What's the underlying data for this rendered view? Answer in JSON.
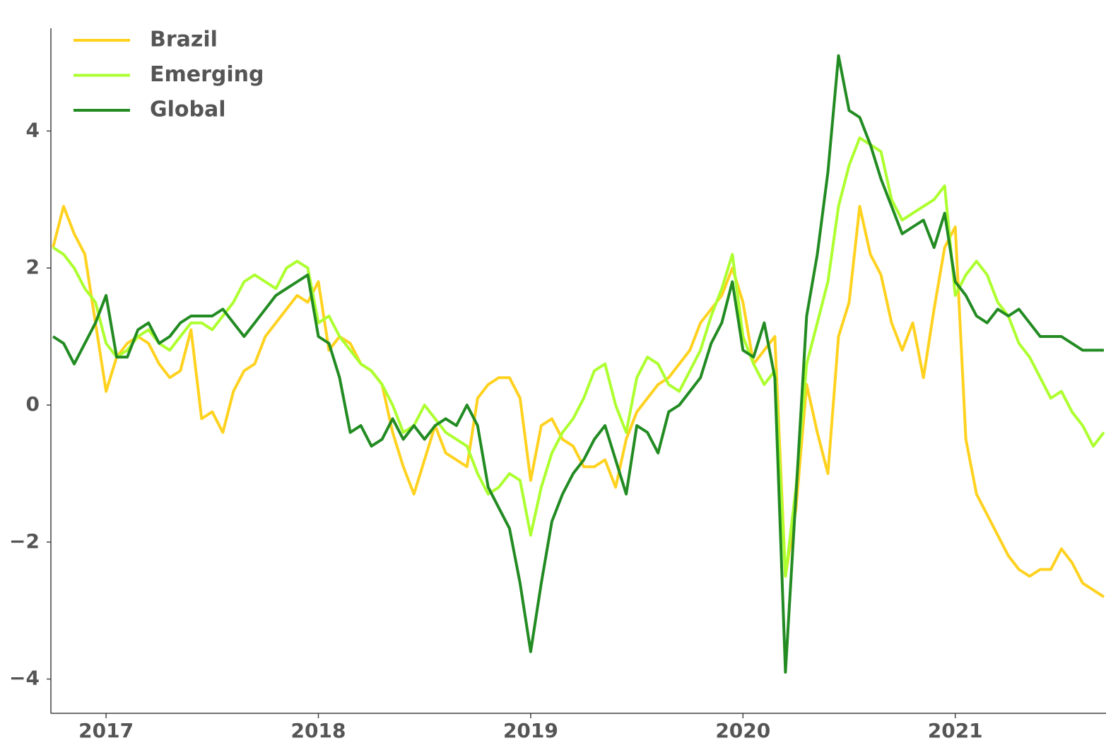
{
  "chart_data": {
    "type": "line",
    "x": [
      2016.75,
      2016.8,
      2016.85,
      2016.9,
      2016.95,
      2017,
      2017.05,
      2017.1,
      2017.15,
      2017.2,
      2017.25,
      2017.3,
      2017.35,
      2017.4,
      2017.45,
      2017.5,
      2017.55,
      2017.6,
      2017.65,
      2017.7,
      2017.75,
      2017.8,
      2017.85,
      2017.9,
      2017.95,
      2018,
      2018.05,
      2018.1,
      2018.15,
      2018.2,
      2018.25,
      2018.3,
      2018.35,
      2018.4,
      2018.45,
      2018.5,
      2018.55,
      2018.6,
      2018.65,
      2018.7,
      2018.75,
      2018.8,
      2018.85,
      2018.9,
      2018.95,
      2019,
      2019.05,
      2019.1,
      2019.15,
      2019.2,
      2019.25,
      2019.3,
      2019.35,
      2019.4,
      2019.45,
      2019.5,
      2019.55,
      2019.6,
      2019.65,
      2019.7,
      2019.75,
      2019.8,
      2019.85,
      2019.9,
      2019.95,
      2020,
      2020.05,
      2020.1,
      2020.15,
      2020.2,
      2020.25,
      2020.3,
      2020.35,
      2020.4,
      2020.45,
      2020.5,
      2020.55,
      2020.6,
      2020.65,
      2020.7,
      2020.75,
      2020.8,
      2020.85,
      2020.9,
      2020.95,
      2021,
      2021.05,
      2021.1,
      2021.15,
      2021.2,
      2021.25,
      2021.3,
      2021.35,
      2021.4,
      2021.45,
      2021.5,
      2021.55,
      2021.6,
      2021.65,
      2021.7
    ],
    "series": [
      {
        "name": "Brazil",
        "color": "#ffd21f",
        "values": [
          2.3,
          2.9,
          2.5,
          2.2,
          1.2,
          0.2,
          0.7,
          0.9,
          1.0,
          0.9,
          0.6,
          0.4,
          0.5,
          1.1,
          -0.2,
          -0.1,
          -0.4,
          0.2,
          0.5,
          0.6,
          1.0,
          1.2,
          1.4,
          1.6,
          1.5,
          1.8,
          0.8,
          1.0,
          0.9,
          0.6,
          0.5,
          0.3,
          -0.4,
          -0.9,
          -1.3,
          -0.8,
          -0.3,
          -0.7,
          -0.8,
          -0.9,
          0.1,
          0.3,
          0.4,
          0.4,
          0.1,
          -1.1,
          -0.3,
          -0.2,
          -0.5,
          -0.6,
          -0.9,
          -0.9,
          -0.8,
          -1.2,
          -0.5,
          -0.1,
          0.1,
          0.3,
          0.4,
          0.6,
          0.8,
          1.2,
          1.4,
          1.6,
          2.0,
          1.5,
          0.6,
          0.8,
          1.0,
          -2.5,
          -1.5,
          0.3,
          -0.4,
          -1.0,
          1.0,
          1.5,
          2.9,
          2.2,
          1.9,
          1.2,
          0.8,
          1.2,
          0.4,
          1.4,
          2.3,
          2.6,
          -0.5,
          -1.3,
          -1.6,
          -1.9,
          -2.2,
          -2.4,
          -2.5,
          -2.4,
          -2.4,
          -2.1,
          -2.3,
          -2.6,
          -2.7,
          -2.8
        ]
      },
      {
        "name": "Emerging",
        "color": "#adff2f",
        "values": [
          2.3,
          2.2,
          2.0,
          1.7,
          1.5,
          0.9,
          0.7,
          0.8,
          1.0,
          1.1,
          0.9,
          0.8,
          1.0,
          1.2,
          1.2,
          1.1,
          1.3,
          1.5,
          1.8,
          1.9,
          1.8,
          1.7,
          2.0,
          2.1,
          2.0,
          1.2,
          1.3,
          1.0,
          0.8,
          0.6,
          0.5,
          0.3,
          0.0,
          -0.4,
          -0.3,
          0.0,
          -0.2,
          -0.4,
          -0.5,
          -0.6,
          -1.0,
          -1.3,
          -1.2,
          -1.0,
          -1.1,
          -1.9,
          -1.2,
          -0.7,
          -0.4,
          -0.2,
          0.1,
          0.5,
          0.6,
          0.0,
          -0.4,
          0.4,
          0.7,
          0.6,
          0.3,
          0.2,
          0.5,
          0.8,
          1.3,
          1.7,
          2.2,
          1.0,
          0.6,
          0.3,
          0.5,
          -2.5,
          -1.2,
          0.6,
          1.2,
          1.8,
          2.9,
          3.5,
          3.9,
          3.8,
          3.7,
          3.0,
          2.7,
          2.8,
          2.9,
          3.0,
          3.2,
          1.6,
          1.9,
          2.1,
          1.9,
          1.5,
          1.3,
          0.9,
          0.7,
          0.4,
          0.1,
          0.2,
          -0.1,
          -0.3,
          -0.6,
          -0.4
        ]
      },
      {
        "name": "Global",
        "color": "#228b22",
        "values": [
          1.0,
          0.9,
          0.6,
          0.9,
          1.2,
          1.6,
          0.7,
          0.7,
          1.1,
          1.2,
          0.9,
          1.0,
          1.2,
          1.3,
          1.3,
          1.3,
          1.4,
          1.2,
          1.0,
          1.2,
          1.4,
          1.6,
          1.7,
          1.8,
          1.9,
          1.0,
          0.9,
          0.4,
          -0.4,
          -0.3,
          -0.6,
          -0.5,
          -0.2,
          -0.5,
          -0.3,
          -0.5,
          -0.3,
          -0.2,
          -0.3,
          0.0,
          -0.3,
          -1.2,
          -1.5,
          -1.8,
          -2.6,
          -3.6,
          -2.6,
          -1.7,
          -1.3,
          -1.0,
          -0.8,
          -0.5,
          -0.3,
          -0.8,
          -1.3,
          -0.3,
          -0.4,
          -0.7,
          -0.1,
          0.0,
          0.2,
          0.4,
          0.9,
          1.2,
          1.8,
          0.8,
          0.7,
          1.2,
          0.4,
          -3.9,
          -1.3,
          1.3,
          2.2,
          3.4,
          5.1,
          4.3,
          4.2,
          3.8,
          3.3,
          2.9,
          2.5,
          2.6,
          2.7,
          2.3,
          2.8,
          1.8,
          1.6,
          1.3,
          1.2,
          1.4,
          1.3,
          1.4,
          1.2,
          1.0,
          1.0,
          1.0,
          0.9,
          0.8,
          0.8,
          0.8
        ]
      }
    ],
    "xlim": [
      2016.74,
      2021.71
    ],
    "xticks": [
      2017,
      2018,
      2019,
      2020,
      2021
    ],
    "ylim": [
      -4.5,
      5.5
    ],
    "yticks": [
      {
        "value": -4,
        "label": "−4"
      },
      {
        "value": -2,
        "label": "−2"
      },
      0,
      2,
      4
    ],
    "legend": "upper left",
    "grid": false
  }
}
